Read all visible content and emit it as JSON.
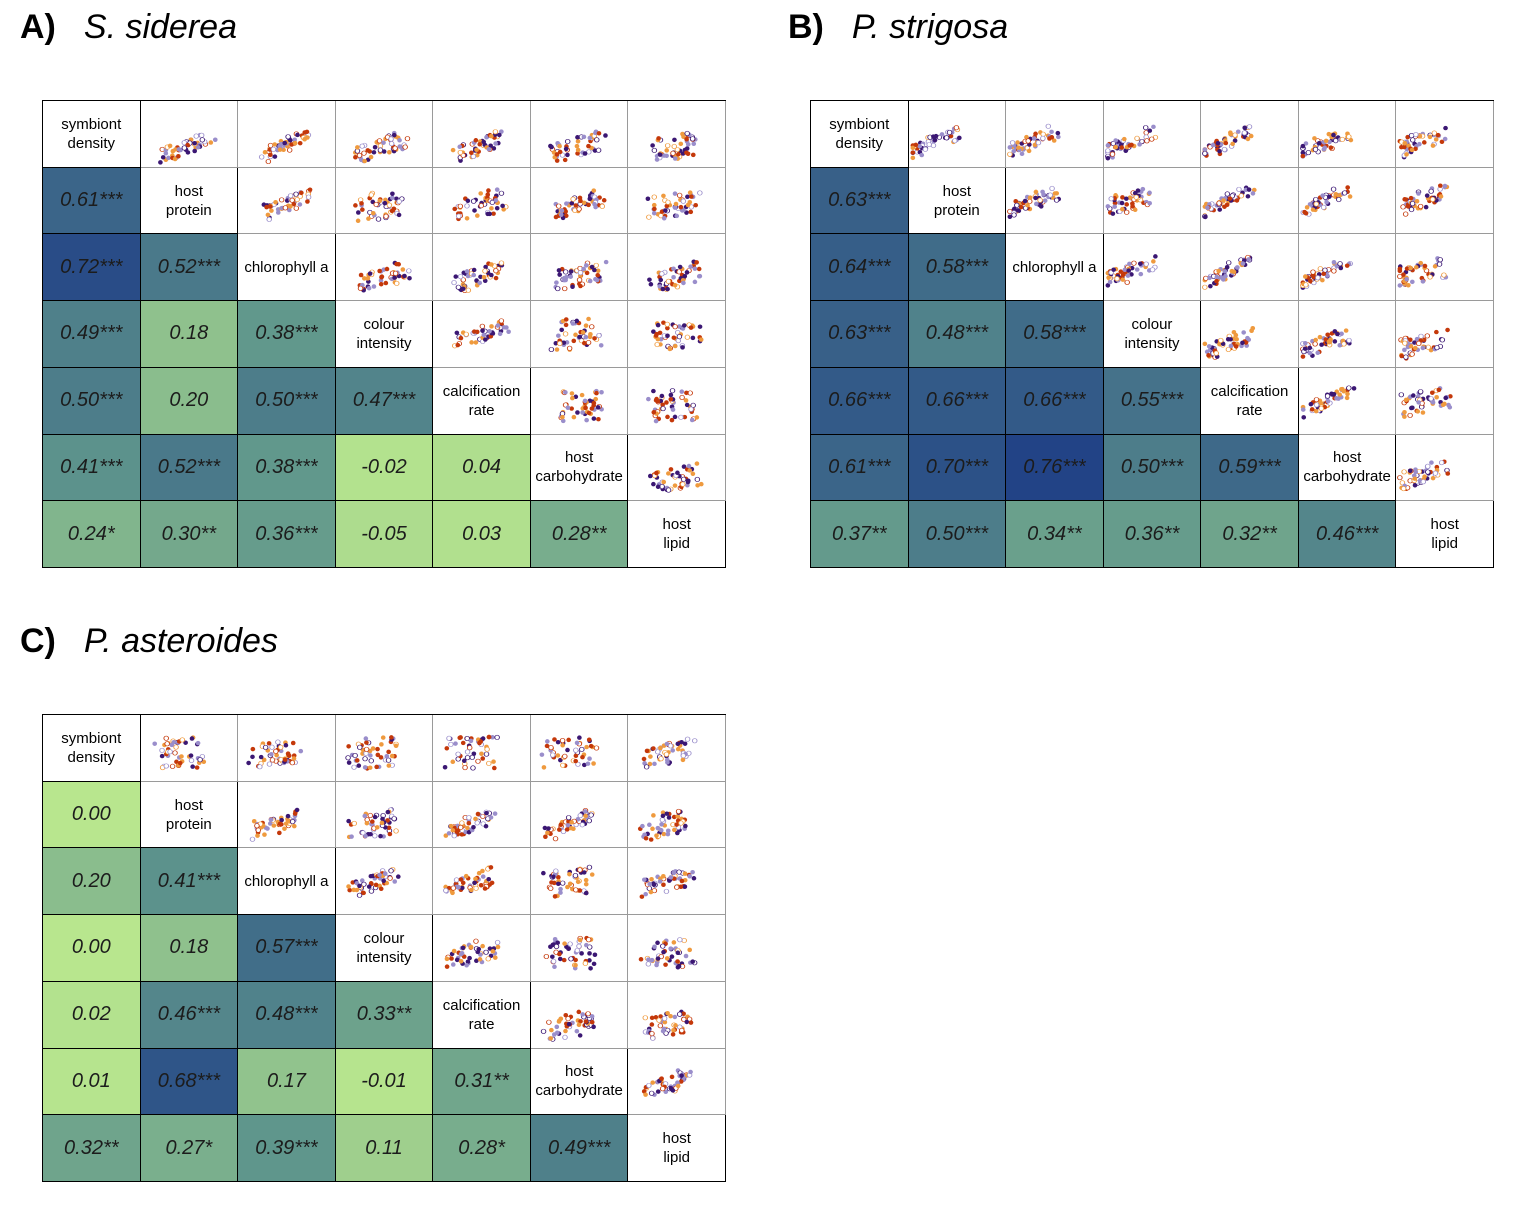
{
  "chart_data": [
    {
      "type": "heatmap",
      "panel_label": "A)",
      "title": "S. siderea",
      "variables": [
        "symbiont\ndensity",
        "host\nprotein",
        "chlorophyll a",
        "colour\nintensity",
        "calcification\nrate",
        "host\ncarbohydrate",
        "host\nlipid"
      ],
      "correlations": [
        [
          "0.61***"
        ],
        [
          "0.72***",
          "0.52***"
        ],
        [
          "0.49***",
          "0.18",
          "0.38***"
        ],
        [
          "0.50***",
          "0.20",
          "0.50***",
          "0.47***"
        ],
        [
          "0.41***",
          "0.52***",
          "0.38***",
          "-0.02",
          "0.04"
        ],
        [
          "0.24*",
          "0.30**",
          "0.36***",
          "-0.05",
          "0.03",
          "0.28**"
        ]
      ]
    },
    {
      "type": "heatmap",
      "panel_label": "B)",
      "title": "P. strigosa",
      "variables": [
        "symbiont\ndensity",
        "host\nprotein",
        "chlorophyll a",
        "colour\nintensity",
        "calcification\nrate",
        "host\ncarbohydrate",
        "host\nlipid"
      ],
      "correlations": [
        [
          "0.63***"
        ],
        [
          "0.64***",
          "0.58***"
        ],
        [
          "0.63***",
          "0.48***",
          "0.58***"
        ],
        [
          "0.66***",
          "0.66***",
          "0.66***",
          "0.55***"
        ],
        [
          "0.61***",
          "0.70***",
          "0.76***",
          "0.50***",
          "0.59***"
        ],
        [
          "0.37**",
          "0.50***",
          "0.34**",
          "0.36**",
          "0.32**",
          "0.46***"
        ]
      ]
    },
    {
      "type": "heatmap",
      "panel_label": "C)",
      "title": "P. asteroides",
      "variables": [
        "symbiont\ndensity",
        "host\nprotein",
        "chlorophyll a",
        "colour\nintensity",
        "calcification\nrate",
        "host\ncarbohydrate",
        "host\nlipid"
      ],
      "correlations": [
        [
          "0.00"
        ],
        [
          "0.20",
          "0.41***"
        ],
        [
          "0.00",
          "0.18",
          "0.57***"
        ],
        [
          "0.02",
          "0.46***",
          "0.48***",
          "0.33**"
        ],
        [
          "0.01",
          "0.68***",
          "0.17",
          "-0.01",
          "0.31**"
        ],
        [
          "0.32**",
          "0.27*",
          "0.39***",
          "0.11",
          "0.28*",
          "0.49***"
        ]
      ]
    }
  ],
  "colors": {
    "scale_low": "#b8e68e",
    "scale_mid": "#5f968c",
    "scale_high": "#1f3f86",
    "points": [
      "#3b1773",
      "#9a8ecb",
      "#c4380a",
      "#ef9a3e"
    ]
  }
}
